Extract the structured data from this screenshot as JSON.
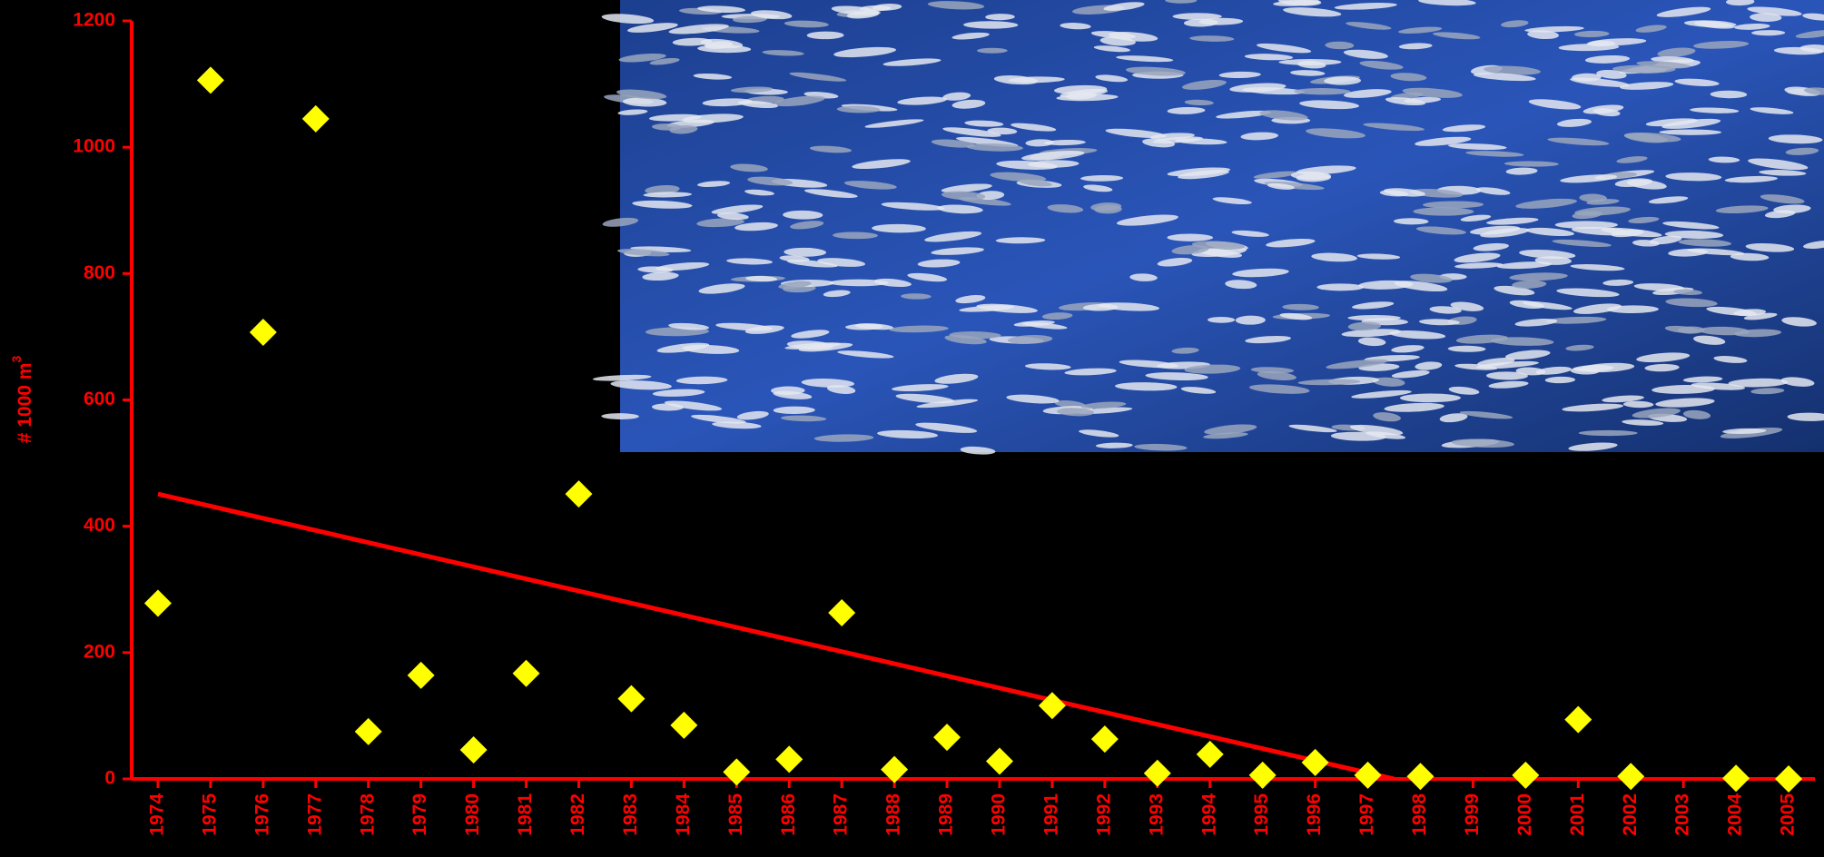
{
  "chart_data": {
    "type": "scatter",
    "y_label": "# 1000 m",
    "y_label_superscript": "3",
    "x": [
      1974,
      1975,
      1976,
      1977,
      1978,
      1979,
      1980,
      1981,
      1982,
      1983,
      1984,
      1985,
      1986,
      1987,
      1988,
      1989,
      1990,
      1991,
      1992,
      1993,
      1994,
      1995,
      1996,
      1997,
      1998,
      1999,
      2000,
      2001,
      2002,
      2003,
      2004,
      2005
    ],
    "values": [
      278,
      1106,
      707,
      1045,
      75,
      164,
      46,
      167,
      451,
      127,
      85,
      11,
      31,
      263,
      15,
      66,
      28,
      116,
      63,
      9,
      39,
      6,
      26,
      6,
      4,
      null,
      6,
      94,
      4,
      null,
      1,
      0
    ],
    "color": "#ffff00",
    "trend": {
      "x": [
        1974,
        1997.5
      ],
      "values": [
        451,
        0
      ],
      "color": "#ff0000"
    },
    "xlim": [
      1973.5,
      2005.5
    ],
    "xticks": [
      1974,
      1975,
      1976,
      1977,
      1978,
      1979,
      1980,
      1981,
      1982,
      1983,
      1984,
      1985,
      1986,
      1987,
      1988,
      1989,
      1990,
      1991,
      1992,
      1993,
      1994,
      1995,
      1996,
      1997,
      1998,
      1999,
      2000,
      2001,
      2002,
      2003,
      2004,
      2005
    ],
    "ylim": [
      0,
      1200
    ],
    "yticks": [
      0,
      200,
      400,
      600,
      800,
      1000,
      1200
    ],
    "axis_color": "#ff0000"
  }
}
